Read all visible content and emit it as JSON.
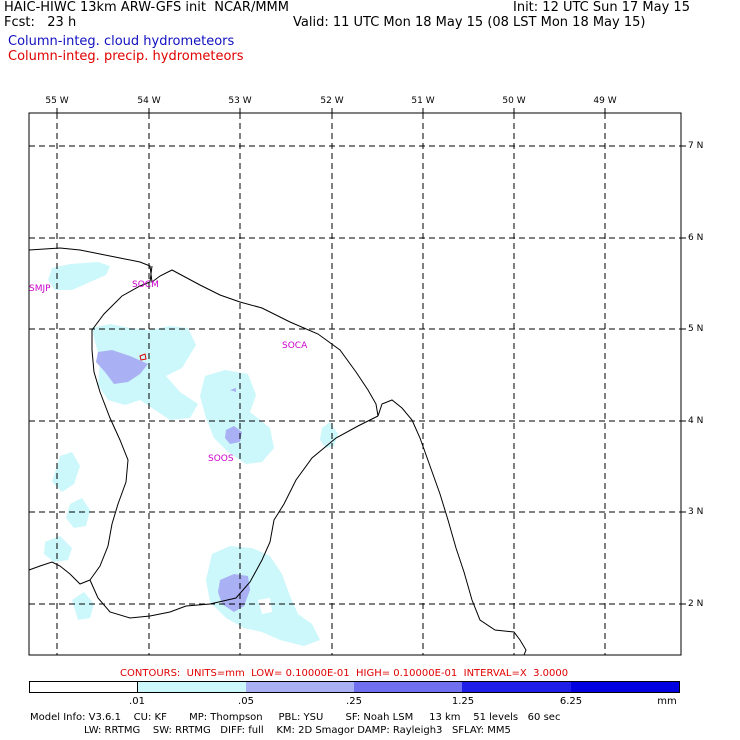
{
  "header": {
    "title_left": "HAIC-HIWC 13km ARW-GFS init  NCAR/MMM",
    "fcst_left": "Fcst:   23 h",
    "init_right": "Init: 12 UTC Sun 17 May 15",
    "valid_right": "Valid: 11 UTC Mon 18 May 15 (08 LST Mon 18 May 15)",
    "field_cloud": "Column-integ. cloud hydrometeors",
    "field_precip": "Column-integ. precip. hydrometeors",
    "color_cloud": "#1010c0",
    "color_precip": "#e00000"
  },
  "map": {
    "lon_labels": [
      "55 W",
      "54 W",
      "53 W",
      "52 W",
      "51 W",
      "50 W",
      "49 W"
    ],
    "lat_labels": [
      "7 N",
      "6 N",
      "5 N",
      "4 N",
      "3 N",
      "2 N"
    ],
    "stations": [
      "SMJP",
      "SOCM",
      "SOCA",
      "SOOS"
    ],
    "station_color": "#cc00cc",
    "coastline_color": "#000000",
    "gridline_style": "dashed"
  },
  "contours": {
    "text": "CONTOURS:  UNITS=mm  LOW= 0.10000E-01  HIGH= 0.10000E-01  INTERVAL=X  3.0000",
    "color": "#e00000"
  },
  "legend": {
    "labels": [
      ".01",
      ".05",
      ".25",
      "1.25",
      "6.25"
    ],
    "units": "mm",
    "colors": [
      "#ffffff",
      "#ccf7fb",
      "#aab0f4",
      "#6f6ff0",
      "#1e1ee8",
      "#0000e0"
    ]
  },
  "model_info": {
    "line1": "Model Info: V3.6.1    CU: KF       MP: Thompson     PBL: YSU       SF: Noah LSM     13 km    51 levels   60 sec",
    "line2": "                 LW: RRTMG    SW: RRTMG   DIFF: full    KM: 2D Smagor DAMP: Rayleigh3   SFLAY: MM5"
  }
}
